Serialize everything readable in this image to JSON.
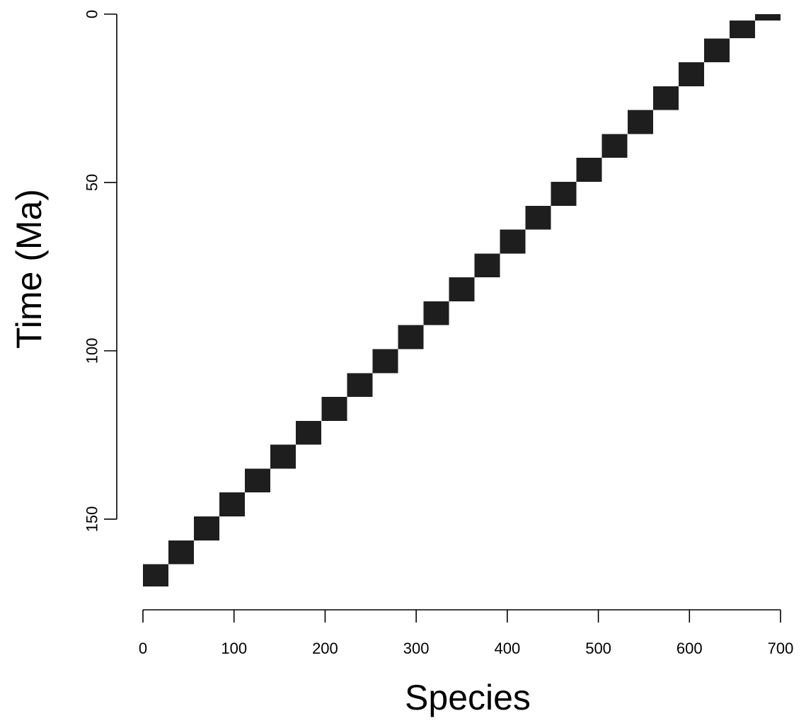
{
  "chart_data": {
    "type": "heatmap",
    "xlabel": "Species",
    "ylabel": "Time (Ma)",
    "xlim": [
      0,
      700
    ],
    "ylim": [
      0,
      170
    ],
    "y_axis_reversed": true,
    "x_ticks": [
      0,
      100,
      200,
      300,
      400,
      500,
      600,
      700
    ],
    "y_ticks": [
      0,
      50,
      100,
      150
    ],
    "grid": false,
    "legend": "none",
    "fill_color": "#1e1e1e",
    "blocks": [
      {
        "x": [
          0,
          28
        ],
        "y": [
          163.4,
          170
        ]
      },
      {
        "x": [
          28,
          56
        ],
        "y": [
          156.3,
          163.4
        ]
      },
      {
        "x": [
          56,
          84
        ],
        "y": [
          149.2,
          156.3
        ]
      },
      {
        "x": [
          84,
          112
        ],
        "y": [
          142.1,
          149.2
        ]
      },
      {
        "x": [
          112,
          140
        ],
        "y": [
          135,
          142.1
        ]
      },
      {
        "x": [
          140,
          168
        ],
        "y": [
          127.9,
          135
        ]
      },
      {
        "x": [
          168,
          196
        ],
        "y": [
          120.8,
          127.9
        ]
      },
      {
        "x": [
          196,
          224
        ],
        "y": [
          113.7,
          120.8
        ]
      },
      {
        "x": [
          224,
          252
        ],
        "y": [
          106.6,
          113.7
        ]
      },
      {
        "x": [
          252,
          280
        ],
        "y": [
          99.5,
          106.6
        ]
      },
      {
        "x": [
          280,
          308
        ],
        "y": [
          92.4,
          99.5
        ]
      },
      {
        "x": [
          308,
          336
        ],
        "y": [
          85.3,
          92.4
        ]
      },
      {
        "x": [
          336,
          364
        ],
        "y": [
          78.2,
          85.3
        ]
      },
      {
        "x": [
          364,
          392
        ],
        "y": [
          71.1,
          78.2
        ]
      },
      {
        "x": [
          392,
          420
        ],
        "y": [
          64,
          71.1
        ]
      },
      {
        "x": [
          420,
          448
        ],
        "y": [
          56.9,
          64
        ]
      },
      {
        "x": [
          448,
          476
        ],
        "y": [
          49.8,
          56.9
        ]
      },
      {
        "x": [
          476,
          504
        ],
        "y": [
          42.7,
          49.8
        ]
      },
      {
        "x": [
          504,
          532
        ],
        "y": [
          35.6,
          42.7
        ]
      },
      {
        "x": [
          532,
          560
        ],
        "y": [
          28.5,
          35.6
        ]
      },
      {
        "x": [
          560,
          588
        ],
        "y": [
          21.4,
          28.5
        ]
      },
      {
        "x": [
          588,
          616
        ],
        "y": [
          14.3,
          21.4
        ]
      },
      {
        "x": [
          616,
          644
        ],
        "y": [
          7.2,
          14.3
        ]
      },
      {
        "x": [
          644,
          672
        ],
        "y": [
          1.9,
          7.2
        ]
      },
      {
        "x": [
          672,
          700
        ],
        "y": [
          0,
          1.9
        ]
      }
    ]
  }
}
